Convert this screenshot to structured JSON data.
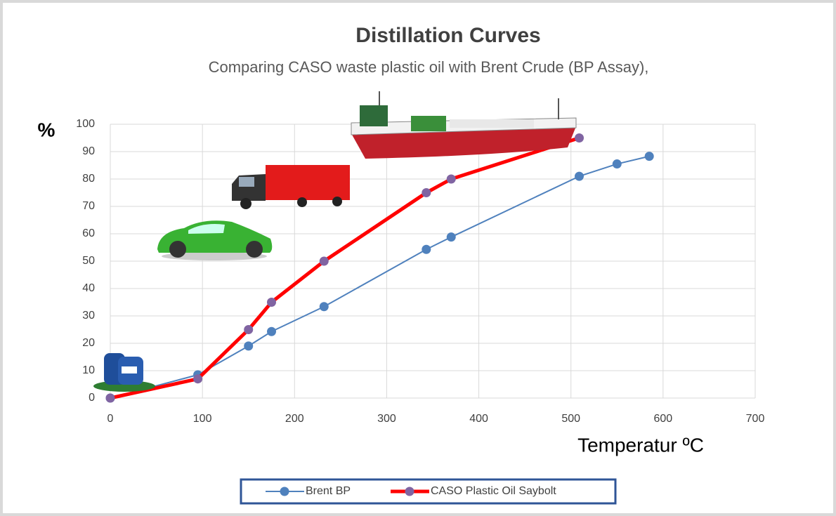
{
  "chart_data": {
    "type": "line",
    "title": "Distillation Curves",
    "subtitle": "Comparing CASO  waste plastic oil with Brent Crude (BP Assay),",
    "y_label": "%",
    "x_label": "Temperatur ºC",
    "xlim": [
      0,
      700
    ],
    "xticks": [
      0,
      100,
      200,
      300,
      400,
      500,
      600,
      700
    ],
    "ylim": [
      0,
      100
    ],
    "yticks": [
      0,
      10,
      20,
      30,
      40,
      50,
      60,
      70,
      80,
      90,
      100
    ],
    "grid": true,
    "legend": "bottom",
    "series": [
      {
        "name": "Brent BP",
        "color": "#4f81bd",
        "marker_color": "#4f81bd",
        "x": [
          0,
          95,
          150,
          175,
          232,
          343,
          370,
          509,
          550,
          585
        ],
        "values": [
          0,
          8.5,
          19,
          24.3,
          33.4,
          54.3,
          58.8,
          81,
          85.5,
          88.3
        ]
      },
      {
        "name": "CASO Plastic Oil Saybolt",
        "color": "#ff0000",
        "marker_color": "#8064a2",
        "x": [
          0,
          95,
          150,
          175,
          232,
          343,
          370,
          509
        ],
        "values": [
          0,
          7,
          25,
          35,
          50,
          75,
          80,
          95
        ]
      }
    ]
  }
}
